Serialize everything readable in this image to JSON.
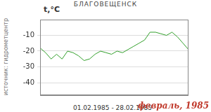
{
  "chart_data": {
    "type": "line",
    "title": "БЛАГОВЕЩЕНСК",
    "y_label": "t,°C",
    "x_label": "01.02.1985 - 28.02.1985",
    "source": "источник: гидрометцентр",
    "period": "февраль, 1985",
    "x": [
      1,
      2,
      3,
      4,
      5,
      6,
      7,
      8,
      9,
      10,
      11,
      12,
      13,
      14,
      15,
      16,
      17,
      18,
      19,
      20,
      21,
      22,
      23,
      24,
      25,
      26,
      27,
      28
    ],
    "values": [
      -18,
      -21,
      -25,
      -22,
      -25,
      -20,
      -21,
      -23,
      -26,
      -25,
      -22,
      -20,
      -21,
      -22,
      -20,
      -21,
      -19,
      -17,
      -15,
      -13,
      -8,
      -8,
      -9,
      -10,
      -8,
      -11,
      -15,
      -19
    ],
    "color": "#33a02c",
    "xlim": [
      1,
      28
    ],
    "ylim": [
      -48,
      0
    ],
    "yticks": [
      -40,
      -30,
      -20,
      -10
    ],
    "grid": true,
    "tick_labels": "y"
  }
}
